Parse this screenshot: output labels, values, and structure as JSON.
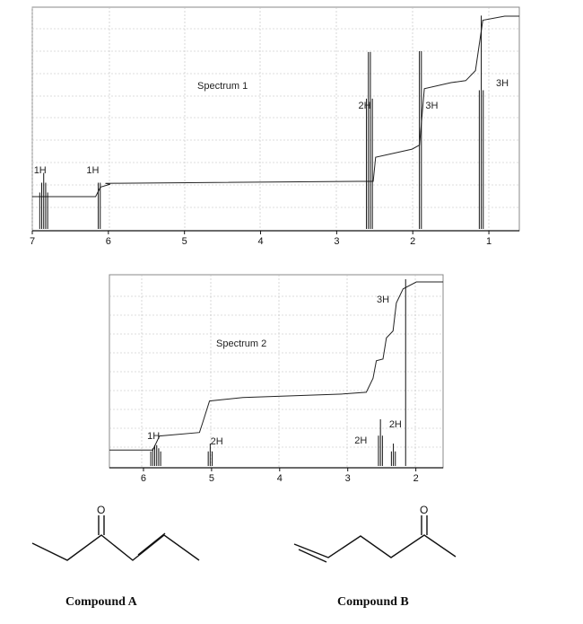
{
  "chart_data": [
    {
      "type": "line",
      "title": "Spectrum 1",
      "xlim": [
        7.0,
        0.6
      ],
      "ticks": [
        7,
        6,
        5,
        4,
        3,
        2,
        1
      ],
      "grid": true,
      "peaks": [
        {
          "shift": 6.85,
          "rel_height": 0.26,
          "multiplet": 5
        },
        {
          "shift": 6.12,
          "rel_height": 0.26,
          "multiplet": 2
        },
        {
          "shift": 2.57,
          "rel_height": 0.93,
          "multiplet": 4
        },
        {
          "shift": 1.9,
          "rel_height": 1.0,
          "multiplet": 2
        },
        {
          "shift": 1.1,
          "rel_height": 0.99,
          "multiplet": 3
        }
      ],
      "integration_labels": [
        {
          "text": "1H",
          "shift": 6.85
        },
        {
          "text": "1H",
          "shift": 6.1
        },
        {
          "text": "2H",
          "shift": 2.55
        },
        {
          "text": "3H",
          "shift": 1.75
        },
        {
          "text": "3H",
          "shift": 0.8
        }
      ]
    },
    {
      "type": "line",
      "title": "Spectrum 2",
      "xlim": [
        6.5,
        1.6
      ],
      "ticks": [
        6,
        5,
        4,
        3,
        2
      ],
      "grid": true,
      "peaks": [
        {
          "shift": 5.82,
          "rel_height": 0.12,
          "multiplet": 6
        },
        {
          "shift": 5.02,
          "rel_height": 0.12,
          "multiplet": 3
        },
        {
          "shift": 2.52,
          "rel_height": 0.25,
          "multiplet": 3
        },
        {
          "shift": 2.33,
          "rel_height": 0.12,
          "multiplet": 3
        },
        {
          "shift": 2.15,
          "rel_height": 1.0,
          "multiplet": 1
        }
      ],
      "integration_labels": [
        {
          "text": "1H",
          "shift": 5.8
        },
        {
          "text": "2H",
          "shift": 4.95
        },
        {
          "text": "2H",
          "shift": 2.65
        },
        {
          "text": "2H",
          "shift": 2.3
        },
        {
          "text": "3H",
          "shift": 2.35
        }
      ]
    }
  ],
  "compounds": [
    {
      "caption": "Compound A",
      "carbonyl_atom": "O"
    },
    {
      "caption": "Compound B",
      "carbonyl_atom": "O"
    }
  ]
}
